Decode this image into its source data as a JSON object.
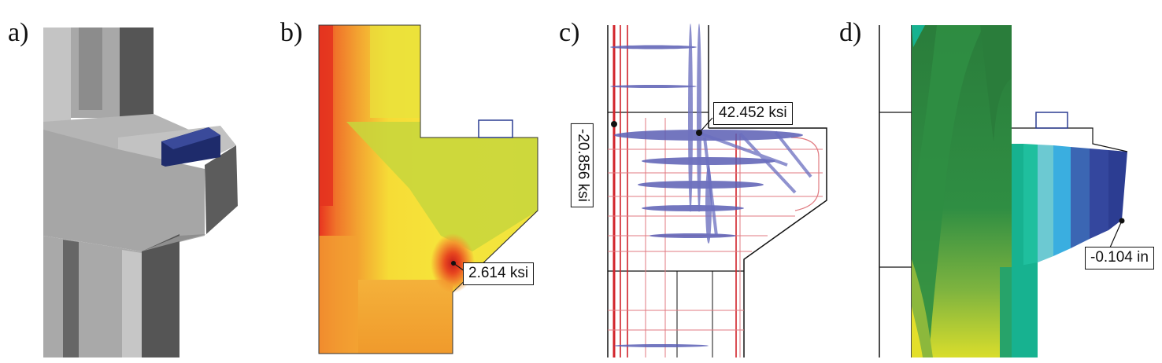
{
  "panels": {
    "a": {
      "letter": "a)"
    },
    "b": {
      "letter": "b)",
      "callout": "2.614 ksi"
    },
    "c": {
      "letter": "c)",
      "callout_top": "42.452 ksi",
      "callout_left": "-20.856 ksi"
    },
    "d": {
      "letter": "d)",
      "callout": "-0.104 in"
    }
  },
  "colors": {
    "concrete_light": "#b8b8b8",
    "concrete_mid": "#9a9a9a",
    "concrete_dark": "#5a5a5a",
    "bearing_pad": "#1e2b6b",
    "stress_red": "#e33b22",
    "stress_orange": "#f28b2b",
    "stress_yellow": "#f5e23a",
    "stress_yellowgreen": "#c9d63b",
    "rebar_red": "#d2232a",
    "strut_blue": "#5b5fb5",
    "disp_darkgreen": "#2b7d3c",
    "disp_green": "#3f9e47",
    "disp_teal": "#17b290",
    "disp_lightblue": "#6cc9d2",
    "disp_sky": "#3aaee0",
    "disp_blue": "#3b66b3",
    "disp_navy": "#2c3d92"
  }
}
